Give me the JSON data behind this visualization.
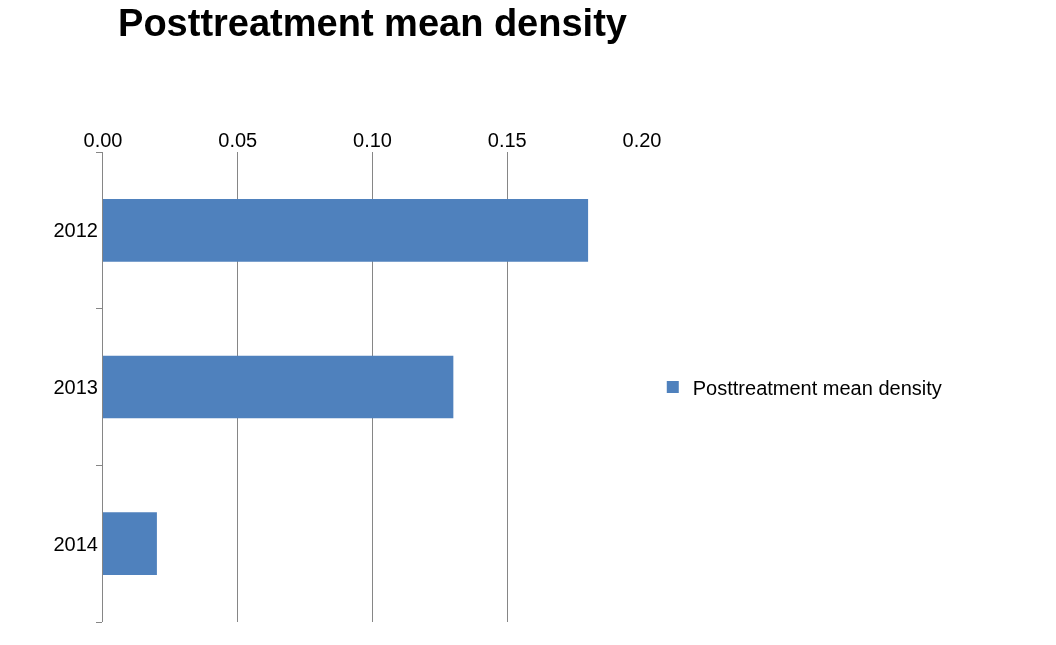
{
  "chart_data": {
    "type": "bar",
    "orientation": "horizontal",
    "title": "Posttreatment mean density",
    "categories": [
      "2012",
      "2013",
      "2014"
    ],
    "series": [
      {
        "name": "Posttreatment mean density",
        "color": "#4f81bd",
        "values": [
          0.18,
          0.13,
          0.02
        ]
      }
    ],
    "xlim": [
      0,
      0.2
    ],
    "xticks": [
      {
        "value": 0,
        "label": "0.00"
      },
      {
        "value": 0.05,
        "label": "0.05"
      },
      {
        "value": 0.1,
        "label": "0.10"
      },
      {
        "value": 0.15,
        "label": "0.15"
      },
      {
        "value": 0.2,
        "label": "0.20"
      }
    ],
    "grid": "x",
    "legend": "right"
  }
}
